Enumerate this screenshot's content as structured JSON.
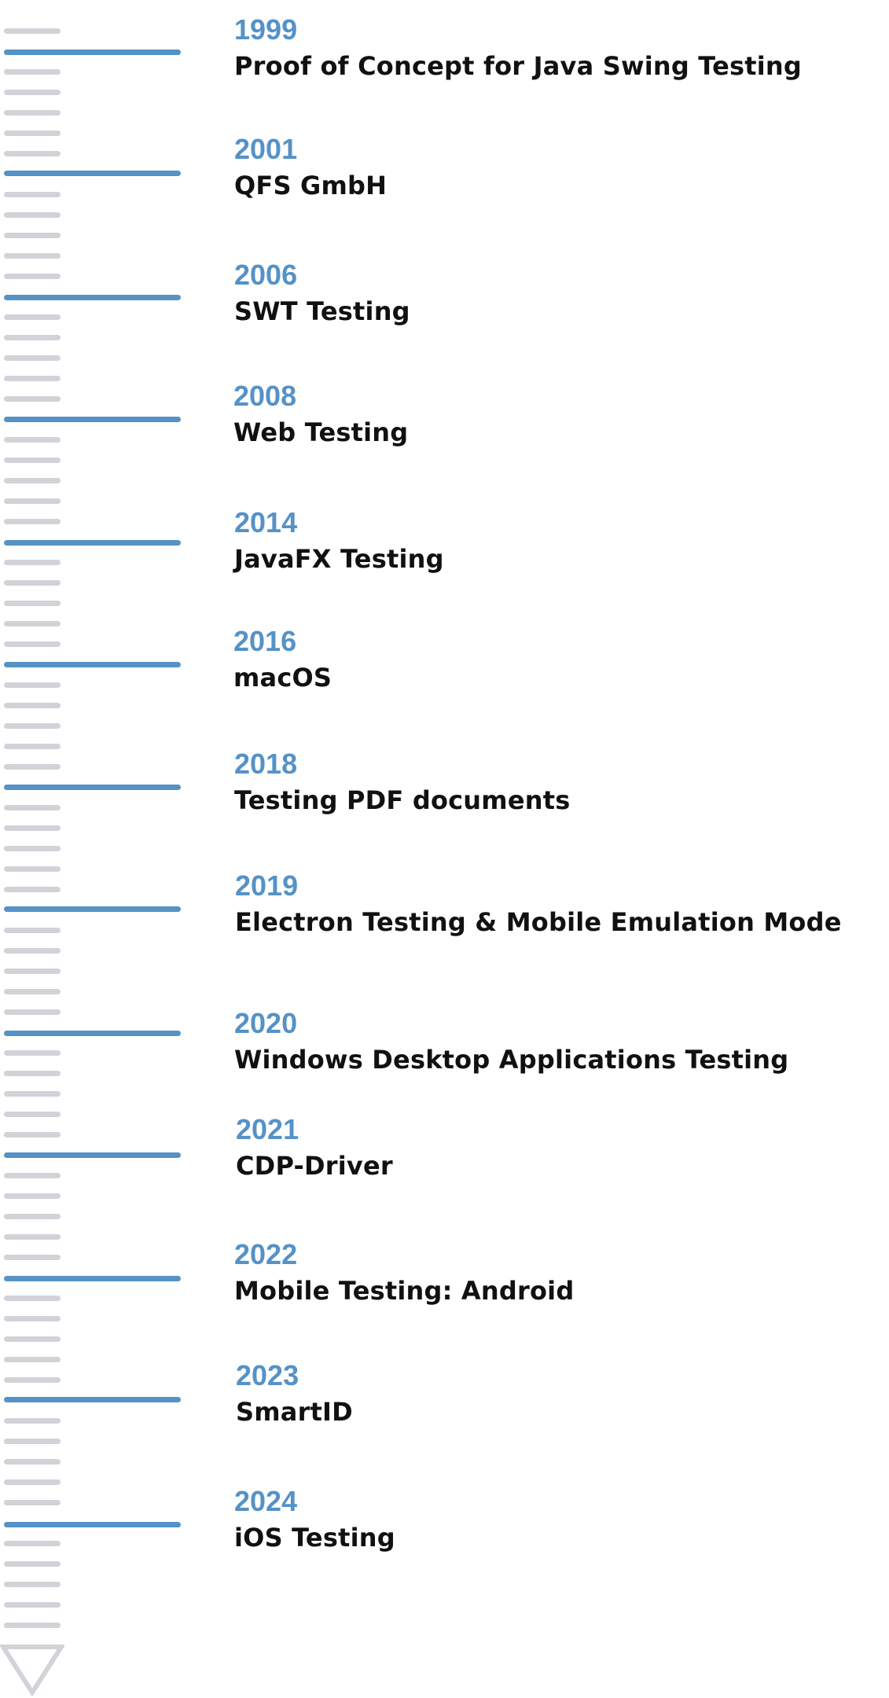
{
  "timeline": {
    "events": [
      {
        "year": "1999",
        "title": "Proof of Concept for Java Swing Testing"
      },
      {
        "year": "2001",
        "title": "QFS GmbH"
      },
      {
        "year": "2006",
        "title": "SWT Testing"
      },
      {
        "year": "2008",
        "title": "Web Testing"
      },
      {
        "year": "2014",
        "title": "JavaFX Testing"
      },
      {
        "year": "2016",
        "title": "macOS"
      },
      {
        "year": "2018",
        "title": "Testing PDF documents"
      },
      {
        "year": "2019",
        "title": "Electron Testing & Mobile Emulation Mode"
      },
      {
        "year": "2020",
        "title": "Windows Desktop Applications Testing"
      },
      {
        "year": "2021",
        "title": "CDP-Driver"
      },
      {
        "year": "2022",
        "title": "Mobile Testing: Android"
      },
      {
        "year": "2023",
        "title": "SmartID"
      },
      {
        "year": "2024",
        "title": "iOS Testing"
      }
    ],
    "colors": {
      "accent": "#5592c6",
      "tick": "#d1d3d8",
      "text": "#111111"
    }
  }
}
